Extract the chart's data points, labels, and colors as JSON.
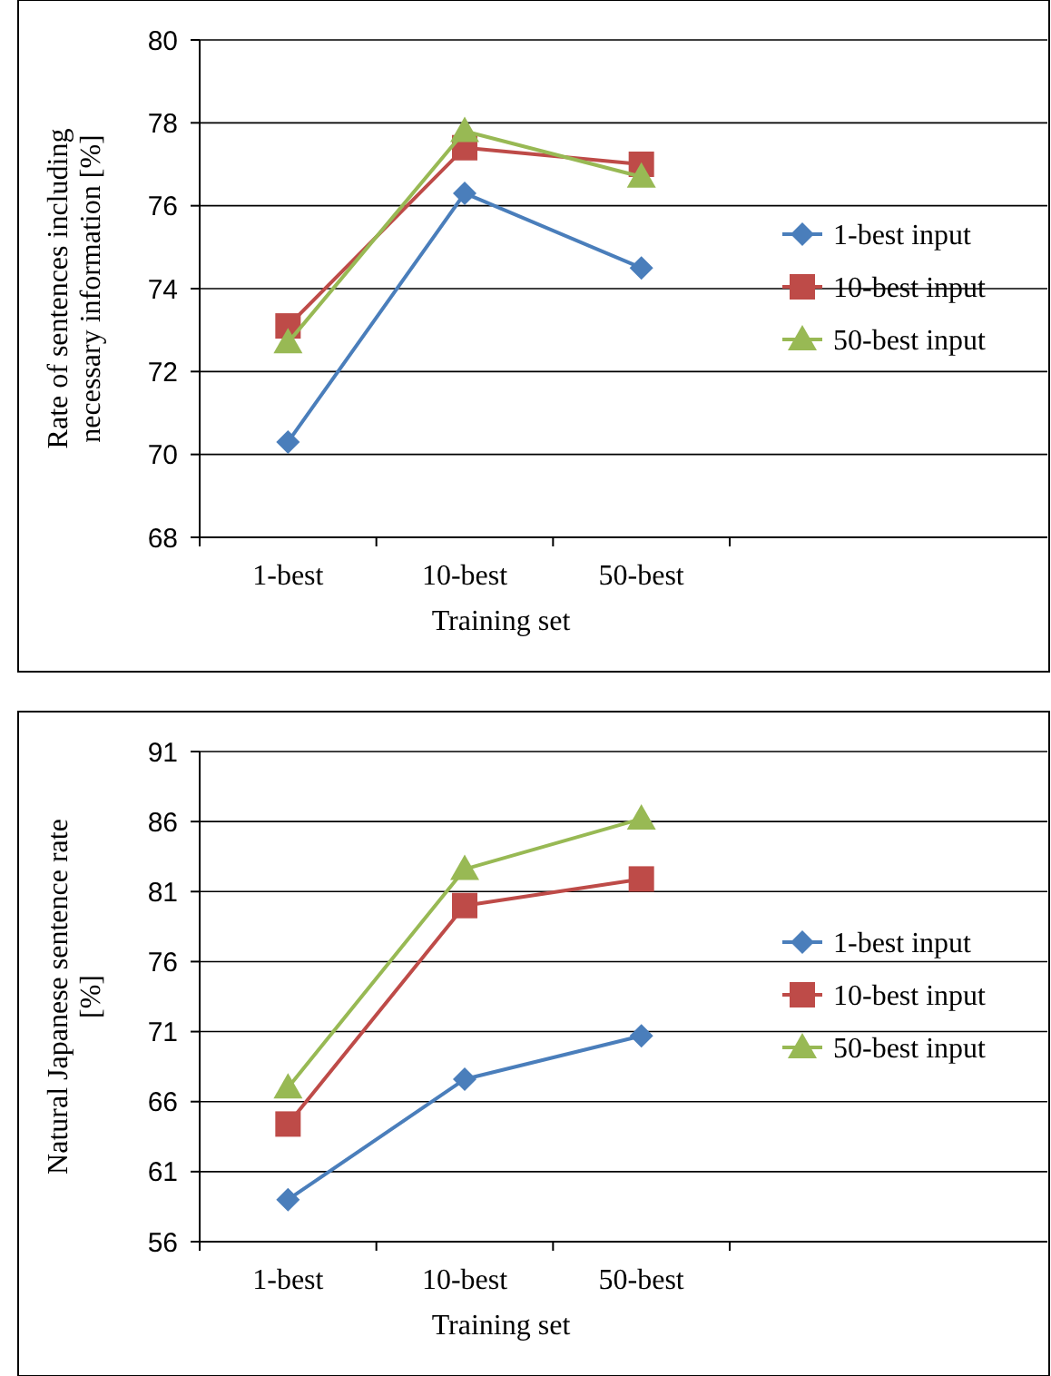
{
  "chart_data": [
    {
      "type": "line",
      "categories": [
        "1-best",
        "10-best",
        "50-best"
      ],
      "xlabel": "Training set",
      "ylabel": "Rate of  sentences including necessary information [%]",
      "ylim": [
        68,
        80
      ],
      "yticks": [
        68,
        70,
        72,
        74,
        76,
        78,
        80
      ],
      "grid": "y",
      "legend": "right",
      "series": [
        {
          "name": "1-best input",
          "color": "#4a7ebb",
          "marker": "diamond",
          "values": [
            70.3,
            76.3,
            74.5
          ]
        },
        {
          "name": "10-best input",
          "color": "#be4b48",
          "marker": "square",
          "values": [
            73.1,
            77.4,
            77.0
          ]
        },
        {
          "name": "50-best input",
          "color": "#98b954",
          "marker": "triangle",
          "values": [
            72.7,
            77.8,
            76.7
          ]
        }
      ]
    },
    {
      "type": "line",
      "categories": [
        "1-best",
        "10-best",
        "50-best"
      ],
      "xlabel": "Training set",
      "ylabel": "Natural Japanese sentence rate [%]",
      "ylim": [
        56,
        91
      ],
      "yticks": [
        56,
        61,
        66,
        71,
        76,
        81,
        86,
        91
      ],
      "grid": "y",
      "legend": "right",
      "series": [
        {
          "name": "1-best input",
          "color": "#4a7ebb",
          "marker": "diamond",
          "values": [
            59.0,
            67.6,
            70.7
          ]
        },
        {
          "name": "10-best input",
          "color": "#be4b48",
          "marker": "square",
          "values": [
            64.4,
            80.0,
            81.9
          ]
        },
        {
          "name": "50-best input",
          "color": "#98b954",
          "marker": "triangle",
          "values": [
            67.0,
            82.6,
            86.2
          ]
        }
      ]
    }
  ]
}
